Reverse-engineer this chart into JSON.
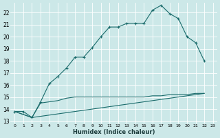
{
  "title": "",
  "xlabel": "Humidex (Indice chaleur)",
  "ylabel": "",
  "background_color": "#cce8e8",
  "grid_color": "#b0d4d4",
  "line_color": "#1a6b6b",
  "xlim": [
    -0.5,
    23.5
  ],
  "ylim": [
    12.8,
    22.8
  ],
  "yticks": [
    13,
    14,
    15,
    16,
    17,
    18,
    19,
    20,
    21,
    22
  ],
  "xticks": [
    0,
    1,
    2,
    3,
    4,
    5,
    6,
    7,
    8,
    9,
    10,
    11,
    12,
    13,
    14,
    15,
    16,
    17,
    18,
    19,
    20,
    21,
    22,
    23
  ],
  "line1_x": [
    0,
    1,
    2,
    3,
    4,
    5,
    6,
    7,
    8,
    9,
    10,
    11,
    12,
    13,
    14,
    15,
    16,
    17,
    18,
    19,
    20,
    21,
    22
  ],
  "line1_y": [
    13.8,
    13.8,
    13.3,
    14.6,
    16.1,
    16.7,
    17.4,
    18.3,
    18.3,
    19.1,
    20.0,
    20.8,
    20.8,
    21.1,
    21.1,
    21.1,
    22.2,
    22.6,
    21.9,
    21.5,
    20.0,
    19.5,
    18.0
  ],
  "line2_x": [
    0,
    2,
    22
  ],
  "line2_y": [
    13.8,
    13.3,
    15.3
  ],
  "line3_x": [
    0,
    2,
    3,
    4,
    5,
    6,
    7,
    8,
    9,
    10,
    11,
    12,
    13,
    14,
    15,
    16,
    17,
    18,
    19,
    20,
    21,
    22
  ],
  "line3_y": [
    13.8,
    13.3,
    14.5,
    14.6,
    14.7,
    14.9,
    15.0,
    15.0,
    15.0,
    15.0,
    15.0,
    15.0,
    15.0,
    15.0,
    15.0,
    15.1,
    15.1,
    15.2,
    15.2,
    15.2,
    15.3,
    15.3
  ]
}
